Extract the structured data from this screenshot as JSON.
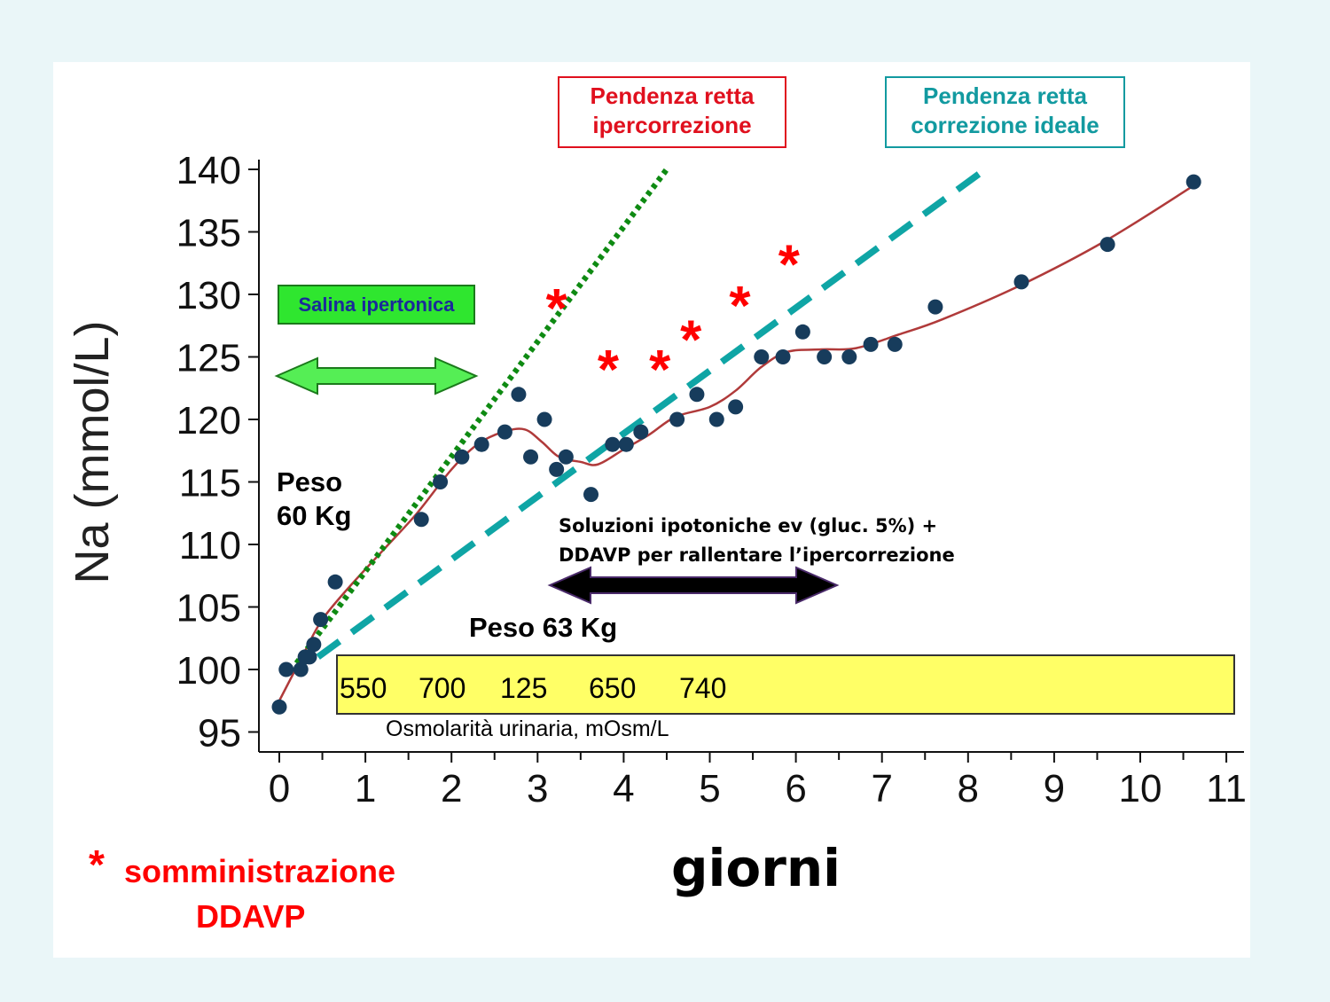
{
  "chart_data": {
    "type": "scatter",
    "xlabel": "giorni",
    "ylabel": "Na (mmol/L)",
    "xlim": [
      0,
      11
    ],
    "ylim": [
      95,
      140
    ],
    "x_ticks": [
      0,
      1,
      2,
      3,
      4,
      5,
      6,
      7,
      8,
      9,
      10,
      11
    ],
    "y_ticks": [
      95,
      100,
      105,
      110,
      115,
      120,
      125,
      130,
      135,
      140
    ],
    "series": [
      {
        "kind": "points",
        "color": "#173c5c",
        "x": [
          0.0,
          0.08,
          0.25,
          0.3,
          0.35,
          0.4,
          0.48,
          0.65,
          1.65,
          1.87,
          2.12,
          2.35,
          2.62,
          2.78,
          2.92,
          3.08,
          3.22,
          3.33,
          3.62,
          3.87,
          4.03,
          4.2,
          4.62,
          4.85,
          5.08,
          5.3,
          5.6,
          5.85,
          6.08,
          6.33,
          6.62,
          6.87,
          7.15,
          7.62,
          8.62,
          9.62,
          10.62
        ],
        "y": [
          97,
          100,
          100,
          101,
          101,
          102,
          104,
          107,
          112,
          115,
          117,
          118,
          119,
          122,
          117,
          120,
          116,
          117,
          114,
          118,
          118,
          119,
          120,
          122,
          120,
          121,
          125,
          125,
          127,
          125,
          125,
          126,
          126,
          129,
          131,
          134,
          139
        ]
      },
      {
        "kind": "smooth",
        "color": "#b03a3a",
        "x": [
          0.0,
          0.15,
          0.3,
          0.5,
          0.8,
          1.2,
          1.6,
          2.0,
          2.3,
          2.6,
          2.85,
          3.05,
          3.25,
          3.5,
          3.7,
          4.0,
          4.3,
          4.6,
          5.0,
          5.3,
          5.6,
          5.9,
          6.3,
          6.7,
          7.2,
          7.7,
          8.6,
          9.6,
          10.62
        ],
        "y": [
          97.5,
          99.5,
          101.5,
          104.0,
          106.5,
          109.5,
          112.5,
          116.0,
          118.0,
          119.0,
          119.2,
          118.2,
          117.0,
          116.6,
          116.4,
          117.6,
          118.8,
          120.2,
          121.0,
          122.3,
          124.2,
          125.4,
          125.6,
          125.7,
          126.8,
          128.0,
          130.7,
          134.3,
          138.7
        ]
      },
      {
        "kind": "dotted-line",
        "color": "#0e8a12",
        "x": [
          0.2,
          4.5
        ],
        "y": [
          100.5,
          140.0
        ]
      },
      {
        "kind": "dashed-line",
        "color": "#0fa5a5",
        "x": [
          0.45,
          8.2
        ],
        "y": [
          101.0,
          140.0
        ]
      }
    ],
    "ddavp_asterisks": [
      {
        "x": 3.22,
        "y": 129.5
      },
      {
        "x": 3.82,
        "y": 124.6
      },
      {
        "x": 4.42,
        "y": 124.6
      },
      {
        "x": 4.78,
        "y": 127.0
      },
      {
        "x": 5.35,
        "y": 129.7
      },
      {
        "x": 5.92,
        "y": 133.0
      }
    ],
    "annotations": {
      "ipercorrezione_label": [
        "Pendenza retta",
        "ipercorrezione"
      ],
      "ideale_label": [
        "Pendenza retta",
        "correzione ideale"
      ],
      "salina_label": "Salina ipertonica",
      "peso_start": [
        "Peso",
        "60 Kg"
      ],
      "peso_end": "Peso 63 Kg",
      "ipotoniche": [
        "Soluzioni ipotoniche ev (gluc. 5%) +",
        "DDAVP per rallentare l’ipercorrezione"
      ],
      "osm_values": [
        "550",
        "700",
        "125",
        "650",
        "740"
      ],
      "osm_label": "Osmolarità urinaria, mOsm/L",
      "legend_star": "*",
      "legend_text": [
        "somministrazione",
        "DDAVP"
      ]
    },
    "colors": {
      "ipercorrezione": "#e0101e",
      "ideale": "#129aa0",
      "salina_fill": "#2fe62f",
      "arrow_green": "#55ee55",
      "arrow_black": "#000000",
      "osm_fill": "#ffff66",
      "asterisk": "#ff0000"
    }
  }
}
